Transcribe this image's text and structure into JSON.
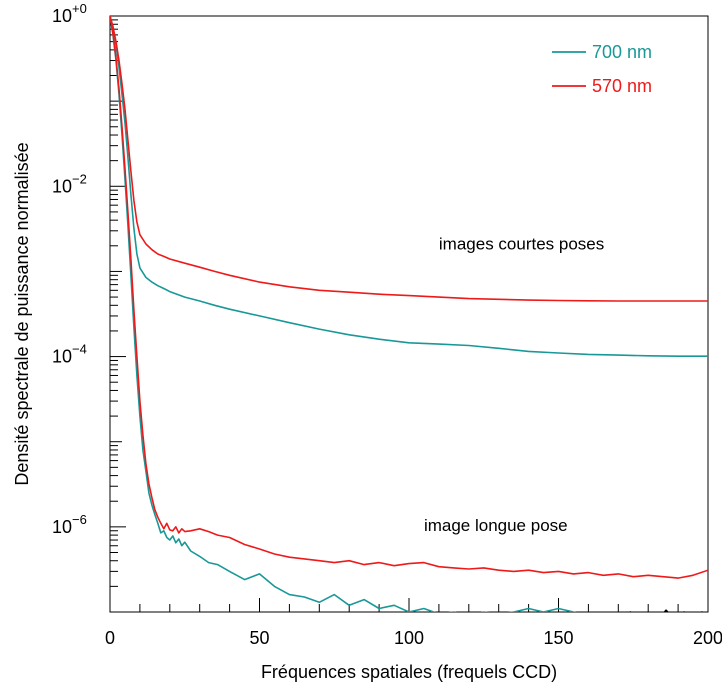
{
  "chart_data": {
    "type": "line",
    "title": "",
    "xlabel": "Fréquences spatiales (frequels CCD)",
    "ylabel": "Densité spectrale de puissance normalisée",
    "xlim": [
      0,
      200
    ],
    "ylim": [
      1e-07,
      1
    ],
    "y_scale": "log",
    "grid": false,
    "legend_position": "top-right",
    "x_ticks": [
      0,
      50,
      100,
      150,
      200
    ],
    "x_tick_labels": [
      "0",
      "50",
      "100",
      "150",
      "200"
    ],
    "y_ticks": [
      1,
      0.01,
      0.0001,
      1e-06
    ],
    "y_tick_labels": [
      {
        "base": "10",
        "exp": "+0"
      },
      {
        "base": "10",
        "exp": "−2"
      },
      {
        "base": "10",
        "exp": "−4"
      },
      {
        "base": "10",
        "exp": "−6"
      }
    ],
    "annotations": [
      {
        "text": "images courtes poses",
        "x": 110,
        "y": 0.0018
      },
      {
        "text": "image longue pose",
        "x": 105,
        "y": 9e-07
      }
    ],
    "series": [
      {
        "name": "700 nm",
        "group": "short",
        "color": "#1a9898",
        "x": [
          0,
          1,
          2,
          3,
          4,
          5,
          6,
          7,
          8,
          9,
          10,
          12,
          14,
          16,
          18,
          20,
          25,
          30,
          35,
          40,
          50,
          60,
          70,
          80,
          90,
          100,
          110,
          120,
          130,
          140,
          150,
          160,
          170,
          180,
          190,
          200
        ],
        "y": [
          1.0,
          0.7,
          0.45,
          0.25,
          0.12,
          0.055,
          0.022,
          0.008,
          0.0032,
          0.0016,
          0.0011,
          0.00085,
          0.00075,
          0.00068,
          0.00063,
          0.00058,
          0.0005,
          0.00045,
          0.0004,
          0.00036,
          0.0003,
          0.00025,
          0.00021,
          0.00018,
          0.00016,
          0.000145,
          0.00014,
          0.000135,
          0.000125,
          0.000115,
          0.00011,
          0.000106,
          0.000104,
          0.000102,
          0.000101,
          0.000101
        ]
      },
      {
        "name": "570 nm",
        "group": "short",
        "color": "#ee1a1a",
        "x": [
          0,
          1,
          2,
          3,
          4,
          5,
          6,
          7,
          8,
          9,
          10,
          12,
          14,
          16,
          18,
          20,
          25,
          30,
          35,
          40,
          50,
          60,
          70,
          80,
          90,
          100,
          110,
          120,
          130,
          140,
          150,
          160,
          170,
          180,
          190,
          200
        ],
        "y": [
          1.0,
          0.75,
          0.5,
          0.3,
          0.16,
          0.08,
          0.035,
          0.015,
          0.0068,
          0.0038,
          0.0027,
          0.0021,
          0.0018,
          0.0016,
          0.0015,
          0.0014,
          0.00125,
          0.00112,
          0.001,
          0.0009,
          0.00075,
          0.00066,
          0.0006,
          0.00057,
          0.00054,
          0.00052,
          0.0005,
          0.00048,
          0.00047,
          0.00046,
          0.000455,
          0.000452,
          0.00045,
          0.00045,
          0.00045,
          0.00045
        ]
      },
      {
        "name": "700 nm",
        "group": "long",
        "color": "#1a9898",
        "x": [
          0,
          1,
          2,
          3,
          4,
          5,
          6,
          7,
          8,
          9,
          10,
          11,
          12,
          13,
          14,
          15,
          16,
          17,
          18,
          19,
          20,
          21,
          22,
          23,
          24,
          25,
          27,
          30,
          33,
          36,
          40,
          45,
          50,
          55,
          60,
          65,
          70,
          75,
          80,
          85,
          90,
          95,
          100,
          105,
          110,
          115,
          120,
          125,
          130,
          135,
          140,
          145,
          150,
          155,
          160,
          165
        ],
        "y": [
          1.0,
          0.6,
          0.3,
          0.12,
          0.04,
          0.012,
          0.0035,
          0.0009,
          0.00022,
          6e-05,
          2e-05,
          8e-06,
          4.5e-06,
          2.5e-06,
          1.8e-06,
          1.4e-06,
          1.1e-06,
          8.5e-07,
          9e-07,
          7.5e-07,
          7e-07,
          7.8e-07,
          6.5e-07,
          7.2e-07,
          6e-07,
          6.6e-07,
          5.2e-07,
          4.5e-07,
          3.8e-07,
          3.6e-07,
          3e-07,
          2.4e-07,
          2.8e-07,
          2e-07,
          1.6e-07,
          1.5e-07,
          1.3e-07,
          1.6e-07,
          1.2e-07,
          1.4e-07,
          1.1e-07,
          1.2e-07,
          1e-07,
          1.1e-07,
          9.5e-08,
          1e-07,
          9e-08,
          1e-07,
          9.5e-08,
          1e-07,
          1.1e-07,
          1e-07,
          1.1e-07,
          1e-07,
          9e-08,
          8e-08
        ]
      },
      {
        "name": "570 nm",
        "group": "long",
        "color": "#ee1a1a",
        "x": [
          0,
          1,
          2,
          3,
          4,
          5,
          6,
          7,
          8,
          9,
          10,
          11,
          12,
          13,
          14,
          15,
          16,
          17,
          18,
          19,
          20,
          21,
          22,
          23,
          24,
          25,
          27,
          30,
          33,
          36,
          40,
          45,
          50,
          55,
          60,
          65,
          70,
          75,
          80,
          85,
          90,
          95,
          100,
          105,
          110,
          115,
          120,
          125,
          130,
          135,
          140,
          145,
          150,
          155,
          160,
          165,
          170,
          175,
          180,
          185,
          190,
          195,
          200
        ],
        "y": [
          1.0,
          0.62,
          0.32,
          0.14,
          0.05,
          0.016,
          0.005,
          0.0014,
          0.00035,
          0.0001,
          3e-05,
          1.2e-05,
          5.5e-06,
          3.2e-06,
          2.2e-06,
          1.6e-06,
          1.3e-06,
          1.1e-06,
          9.5e-07,
          1.1e-06,
          9.2e-07,
          9e-07,
          1e-06,
          8.5e-07,
          9.5e-07,
          8.8e-07,
          9e-07,
          9.5e-07,
          8.8e-07,
          8e-07,
          7.5e-07,
          6.2e-07,
          5.5e-07,
          4.8e-07,
          4.4e-07,
          4.2e-07,
          4e-07,
          3.8e-07,
          4e-07,
          3.6e-07,
          3.8e-07,
          3.5e-07,
          3.7e-07,
          3.8e-07,
          3.4e-07,
          3.3e-07,
          3.2e-07,
          3.3e-07,
          3.1e-07,
          3e-07,
          3.1e-07,
          2.9e-07,
          3e-07,
          2.8e-07,
          2.9e-07,
          2.7e-07,
          2.8e-07,
          2.6e-07,
          2.7e-07,
          2.6e-07,
          2.5e-07,
          2.7e-07,
          3.1e-07
        ]
      },
      {
        "name": "",
        "group": "long-black",
        "color": "#000000",
        "x": [
          165,
          168,
          171,
          174,
          177,
          180,
          183,
          186,
          189,
          192,
          195,
          198,
          200
        ],
        "y": [
          8e-08,
          9.5e-08,
          8e-08,
          1e-07,
          8e-08,
          1e-07,
          8e-08,
          1.05e-07,
          8e-08,
          1e-07,
          8e-08,
          1e-07,
          9e-08
        ]
      }
    ]
  }
}
